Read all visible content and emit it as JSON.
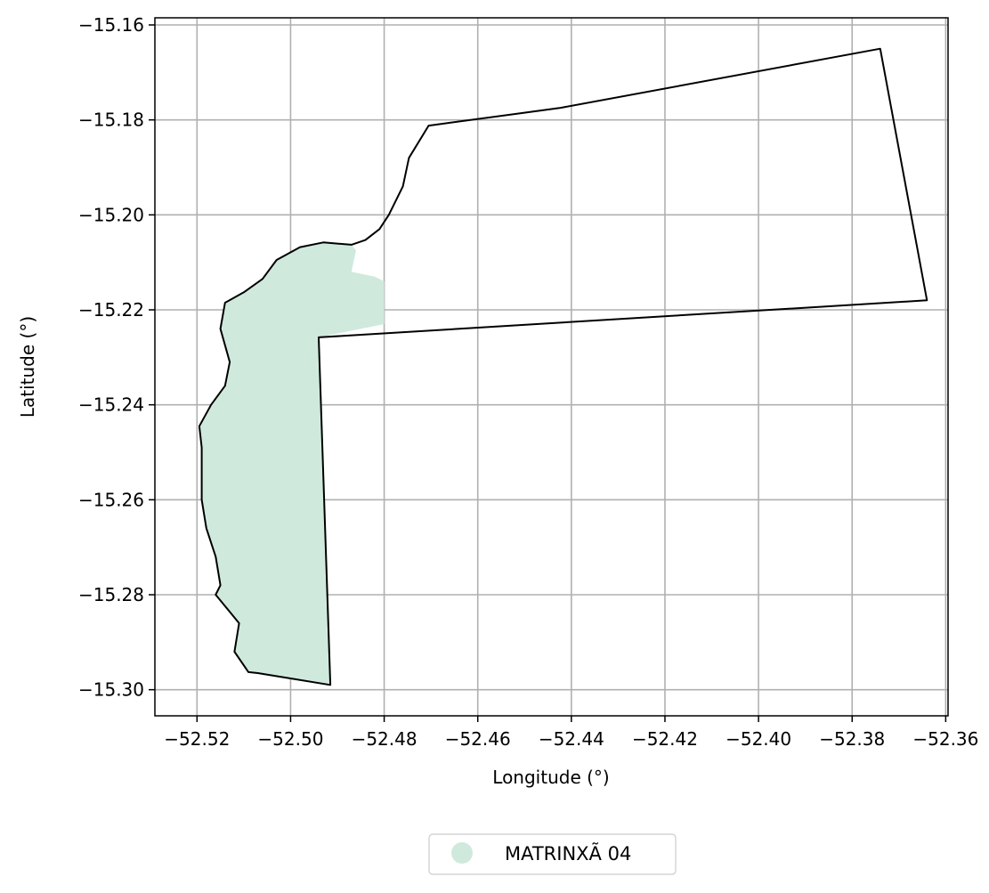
{
  "chart_data": {
    "type": "map",
    "xlabel": "Longitude (°)",
    "ylabel": "Latitude (°)",
    "xlim": [
      -52.529,
      -52.3595
    ],
    "ylim": [
      -15.3055,
      -15.1585
    ],
    "x_ticks": [
      -52.52,
      -52.5,
      -52.48,
      -52.46,
      -52.44,
      -52.42,
      -52.4,
      -52.38,
      -52.36
    ],
    "x_tick_labels": [
      "−52.52",
      "−52.50",
      "−52.48",
      "−52.46",
      "−52.44",
      "−52.42",
      "−52.40",
      "−52.38",
      "−52.36"
    ],
    "y_ticks": [
      -15.16,
      -15.18,
      -15.2,
      -15.22,
      -15.24,
      -15.26,
      -15.28,
      -15.3
    ],
    "y_tick_labels": [
      "−15.16",
      "−15.18",
      "−15.20",
      "−15.22",
      "−15.24",
      "−15.26",
      "−15.28",
      "−15.30"
    ],
    "grid": true,
    "legend_position": "bottom-center",
    "legend": [
      {
        "label": "MATRINXÃ 04",
        "color": "#cfeadd"
      }
    ],
    "fill_color": "#cfeadd",
    "outline_color": "#000000",
    "outline": [
      [
        -52.4425,
        -15.1775
      ],
      [
        -52.4705,
        -15.1812
      ],
      [
        -52.4747,
        -15.188
      ],
      [
        -52.476,
        -15.194
      ],
      [
        -52.479,
        -15.2
      ],
      [
        -52.481,
        -15.203
      ],
      [
        -52.484,
        -15.2053
      ],
      [
        -52.487,
        -15.2063
      ],
      [
        -52.493,
        -15.2058
      ],
      [
        -52.498,
        -15.2068
      ],
      [
        -52.503,
        -15.2095
      ],
      [
        -52.506,
        -15.2135
      ],
      [
        -52.51,
        -15.2163
      ],
      [
        -52.514,
        -15.2185
      ],
      [
        -52.515,
        -15.224
      ],
      [
        -52.513,
        -15.231
      ],
      [
        -52.514,
        -15.236
      ],
      [
        -52.517,
        -15.24
      ],
      [
        -52.5195,
        -15.2445
      ],
      [
        -52.519,
        -15.249
      ],
      [
        -52.519,
        -15.26
      ],
      [
        -52.518,
        -15.266
      ],
      [
        -52.516,
        -15.272
      ],
      [
        -52.515,
        -15.278
      ],
      [
        -52.516,
        -15.28
      ],
      [
        -52.511,
        -15.286
      ],
      [
        -52.512,
        -15.292
      ],
      [
        -52.509,
        -15.2963
      ],
      [
        -52.507,
        -15.2965
      ],
      [
        -52.4915,
        -15.299
      ],
      [
        -52.494,
        -15.2258
      ],
      [
        -52.364,
        -15.218
      ],
      [
        -52.374,
        -15.165
      ],
      [
        -52.4425,
        -15.1775
      ]
    ],
    "filled_area": [
      [
        -52.498,
        -15.2068
      ],
      [
        -52.493,
        -15.2058
      ],
      [
        -52.487,
        -15.2063
      ],
      [
        -52.486,
        -15.2075
      ],
      [
        -52.487,
        -15.212
      ],
      [
        -52.482,
        -15.213
      ],
      [
        -52.48,
        -15.214
      ],
      [
        -52.48,
        -15.218
      ],
      [
        -52.48,
        -15.223
      ],
      [
        -52.494,
        -15.2258
      ],
      [
        -52.4915,
        -15.299
      ],
      [
        -52.507,
        -15.2965
      ],
      [
        -52.509,
        -15.2963
      ],
      [
        -52.512,
        -15.292
      ],
      [
        -52.511,
        -15.286
      ],
      [
        -52.516,
        -15.28
      ],
      [
        -52.515,
        -15.278
      ],
      [
        -52.516,
        -15.272
      ],
      [
        -52.518,
        -15.266
      ],
      [
        -52.519,
        -15.26
      ],
      [
        -52.519,
        -15.249
      ],
      [
        -52.5195,
        -15.2445
      ],
      [
        -52.517,
        -15.24
      ],
      [
        -52.514,
        -15.236
      ],
      [
        -52.513,
        -15.231
      ],
      [
        -52.515,
        -15.224
      ],
      [
        -52.514,
        -15.2185
      ],
      [
        -52.51,
        -15.2163
      ],
      [
        -52.506,
        -15.2135
      ],
      [
        -52.503,
        -15.2095
      ],
      [
        -52.498,
        -15.2068
      ]
    ]
  }
}
